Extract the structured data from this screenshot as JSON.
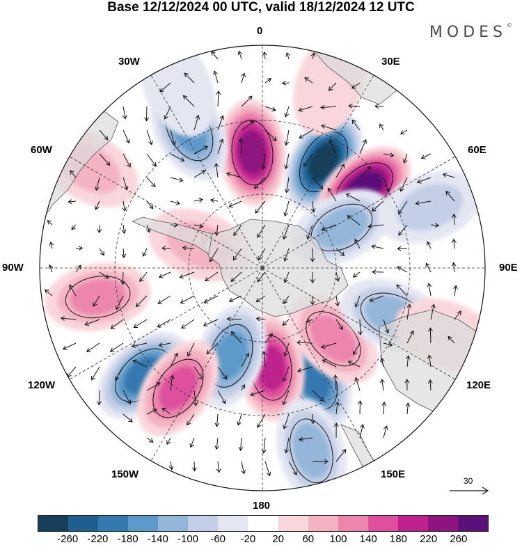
{
  "title": "Base 12/12/2024 00 UTC, valid 18/12/2024 12 UTC",
  "brand": "MODES",
  "brand_mark": "©",
  "longitude_labels": {
    "top": "0",
    "right": "90E",
    "bottom": "180",
    "left": "90W",
    "deg30e": "30E",
    "deg60e": "60E",
    "deg120e": "120E",
    "deg150e": "150E",
    "deg30w": "30W",
    "deg60w": "60W",
    "deg120w": "120W",
    "deg150w": "150W"
  },
  "vector_reference": "30",
  "colorbar": {
    "colors": [
      "#183f5a",
      "#1f5f8f",
      "#3478b0",
      "#5d9ac9",
      "#93b6d9",
      "#c3cfe6",
      "#e4e6f2",
      "#ffffff",
      "#f9d6dc",
      "#f4b3c2",
      "#ec86ad",
      "#de4f9d",
      "#be218c",
      "#8e1580",
      "#5a1179"
    ],
    "tick_labels": [
      "-260",
      "-220",
      "-180",
      "-140",
      "-100",
      "-60",
      "-20",
      "20",
      "60",
      "100",
      "140",
      "180",
      "220",
      "260"
    ]
  },
  "anomaly_centers": [
    {
      "value": -260,
      "lon": 30,
      "colat": 0.55
    },
    {
      "value": 240,
      "lon": -5,
      "colat": 0.52
    },
    {
      "value": 260,
      "lon": 52,
      "colat": 0.58
    },
    {
      "value": -160,
      "lon": -28,
      "colat": 0.7
    },
    {
      "value": -120,
      "lon": 63,
      "colat": 0.4
    },
    {
      "value": -200,
      "lon": 155,
      "colat": 0.55
    },
    {
      "value": 180,
      "lon": 175,
      "colat": 0.45
    },
    {
      "value": -180,
      "lon": 228,
      "colat": 0.72
    },
    {
      "value": -160,
      "lon": 200,
      "colat": 0.42
    },
    {
      "value": 140,
      "lon": 215,
      "colat": 0.66
    },
    {
      "value": -120,
      "lon": 165,
      "colat": 0.85
    },
    {
      "value": 100,
      "lon": 260,
      "colat": 0.75
    },
    {
      "value": 100,
      "lon": 135,
      "colat": 0.45
    },
    {
      "value": -100,
      "lon": 110,
      "colat": 0.62
    },
    {
      "value": -80,
      "lon": 70,
      "colat": 0.8
    },
    {
      "value": 60,
      "lon": 290,
      "colat": 0.3
    },
    {
      "value": -40,
      "lon": 335,
      "colat": 0.9
    },
    {
      "value": 40,
      "lon": 110,
      "colat": 0.88
    },
    {
      "value": 60,
      "lon": 300,
      "colat": 0.9
    },
    {
      "value": 40,
      "lon": 20,
      "colat": 0.88
    }
  ]
}
